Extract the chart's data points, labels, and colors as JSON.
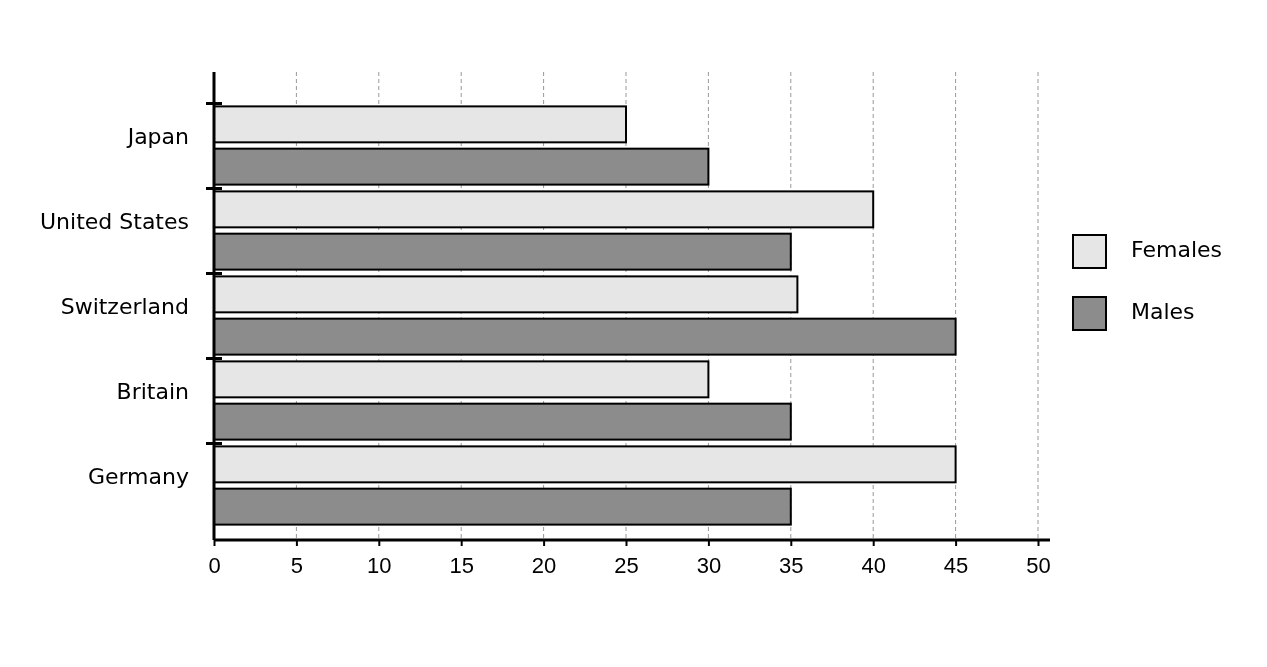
{
  "chart_data": {
    "type": "bar",
    "orientation": "horizontal",
    "categories": [
      "Japan",
      "United States",
      "Switzerland",
      "Britain",
      "Germany"
    ],
    "series": [
      {
        "name": "Females",
        "color": "#e6e6e6",
        "values": [
          25,
          40,
          35.4,
          30,
          45
        ]
      },
      {
        "name": "Males",
        "color": "#8c8c8c",
        "values": [
          30,
          35,
          45,
          35,
          35
        ]
      }
    ],
    "xlim": [
      0,
      50
    ],
    "xticks": [
      0,
      5,
      10,
      15,
      20,
      25,
      30,
      35,
      40,
      45,
      50
    ],
    "grid": "x",
    "legend": "right"
  }
}
